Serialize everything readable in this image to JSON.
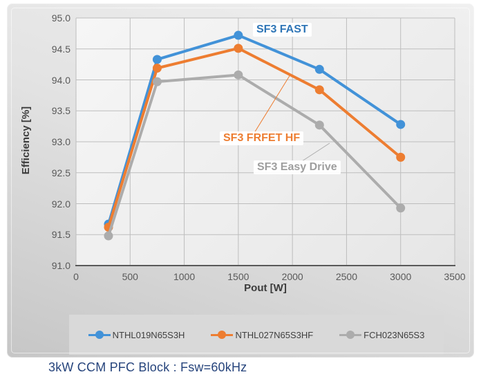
{
  "caption": {
    "text": "3kW CCM PFC Block : Fsw=60kHz",
    "color": "#26447C"
  },
  "chart_data": {
    "type": "line",
    "title": "",
    "xlabel": "Pout [W]",
    "ylabel": "Efficiency [%]",
    "xlim": [
      0,
      3500
    ],
    "ylim": [
      91.0,
      95.0
    ],
    "x_ticks": [
      0,
      500,
      1000,
      1500,
      2000,
      2500,
      3000,
      3500
    ],
    "y_ticks": [
      95.0,
      94.5,
      94.0,
      93.5,
      93.0,
      92.5,
      92.0,
      91.5,
      91.0
    ],
    "y_tick_decimals": 1,
    "grid": true,
    "legend_position": "bottom",
    "x": [
      300,
      750,
      1500,
      2250,
      3000
    ],
    "series": [
      {
        "name": "NTHL019N65S3H",
        "annotation": "SF3 FAST",
        "annotation_color": "#2E75B6",
        "color": "#4292D8",
        "values": [
          91.67,
          94.33,
          94.72,
          94.17,
          93.28
        ]
      },
      {
        "name": "NTHL027N65S3HF",
        "annotation": "SF3 FRFET HF",
        "annotation_color": "#ED7D31",
        "color": "#ED7D31",
        "values": [
          91.62,
          94.19,
          94.51,
          93.84,
          92.75
        ]
      },
      {
        "name": "FCH023N65S3",
        "annotation": "SF3 Easy Drive",
        "annotation_color": "#9E9E9E",
        "color": "#ACACAC",
        "values": [
          91.48,
          93.97,
          94.08,
          93.27,
          91.93
        ]
      }
    ],
    "style": {
      "grid_color": "#BDBDBD",
      "axis_color": "#595959",
      "tick_label_color": "#595959",
      "axis_title_color": "#3B3B3B"
    }
  }
}
